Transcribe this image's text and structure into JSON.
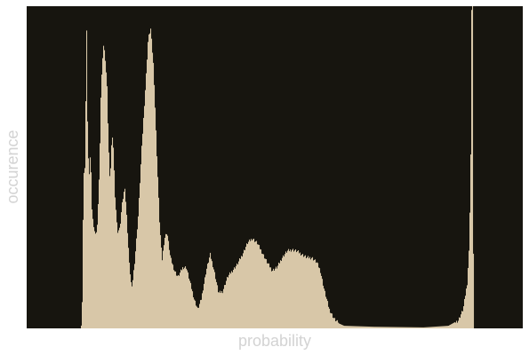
{
  "chart_data": {
    "type": "bar",
    "xlabel": "probability",
    "ylabel": "occurence",
    "title": "",
    "grid": false,
    "ticks_shown": false,
    "xlim": [
      0,
      1
    ],
    "ylim": [
      0,
      1
    ],
    "bar_color": "#d8c7a8",
    "background_color": "#17150f",
    "label_color": "#d3d3d3",
    "profile": [
      [
        0.0,
        0.0
      ],
      [
        0.11,
        0.0
      ],
      [
        0.112,
        0.08
      ],
      [
        0.115,
        0.5
      ],
      [
        0.117,
        0.45
      ],
      [
        0.121,
        0.93
      ],
      [
        0.123,
        0.6
      ],
      [
        0.126,
        0.47
      ],
      [
        0.129,
        0.55
      ],
      [
        0.132,
        0.35
      ],
      [
        0.137,
        0.3
      ],
      [
        0.142,
        0.3
      ],
      [
        0.147,
        0.5
      ],
      [
        0.15,
        0.75
      ],
      [
        0.155,
        0.88
      ],
      [
        0.158,
        0.85
      ],
      [
        0.162,
        0.76
      ],
      [
        0.165,
        0.58
      ],
      [
        0.168,
        0.45
      ],
      [
        0.172,
        0.6
      ],
      [
        0.175,
        0.56
      ],
      [
        0.178,
        0.42
      ],
      [
        0.183,
        0.3
      ],
      [
        0.188,
        0.31
      ],
      [
        0.192,
        0.38
      ],
      [
        0.198,
        0.44
      ],
      [
        0.202,
        0.34
      ],
      [
        0.207,
        0.2
      ],
      [
        0.212,
        0.12
      ],
      [
        0.218,
        0.21
      ],
      [
        0.225,
        0.35
      ],
      [
        0.232,
        0.56
      ],
      [
        0.24,
        0.76
      ],
      [
        0.245,
        0.9
      ],
      [
        0.25,
        0.93
      ],
      [
        0.256,
        0.81
      ],
      [
        0.262,
        0.56
      ],
      [
        0.268,
        0.33
      ],
      [
        0.273,
        0.21
      ],
      [
        0.278,
        0.28
      ],
      [
        0.283,
        0.3
      ],
      [
        0.29,
        0.22
      ],
      [
        0.298,
        0.18
      ],
      [
        0.305,
        0.16
      ],
      [
        0.315,
        0.19
      ],
      [
        0.322,
        0.19
      ],
      [
        0.33,
        0.14
      ],
      [
        0.338,
        0.09
      ],
      [
        0.345,
        0.06
      ],
      [
        0.352,
        0.09
      ],
      [
        0.362,
        0.18
      ],
      [
        0.37,
        0.23
      ],
      [
        0.378,
        0.18
      ],
      [
        0.387,
        0.11
      ],
      [
        0.395,
        0.115
      ],
      [
        0.405,
        0.16
      ],
      [
        0.415,
        0.18
      ],
      [
        0.425,
        0.2
      ],
      [
        0.435,
        0.23
      ],
      [
        0.445,
        0.265
      ],
      [
        0.455,
        0.28
      ],
      [
        0.465,
        0.265
      ],
      [
        0.475,
        0.235
      ],
      [
        0.485,
        0.205
      ],
      [
        0.495,
        0.18
      ],
      [
        0.505,
        0.19
      ],
      [
        0.515,
        0.22
      ],
      [
        0.525,
        0.24
      ],
      [
        0.535,
        0.245
      ],
      [
        0.545,
        0.24
      ],
      [
        0.555,
        0.23
      ],
      [
        0.565,
        0.22
      ],
      [
        0.575,
        0.22
      ],
      [
        0.585,
        0.205
      ],
      [
        0.592,
        0.18
      ],
      [
        0.6,
        0.12
      ],
      [
        0.61,
        0.06
      ],
      [
        0.62,
        0.03
      ],
      [
        0.63,
        0.015
      ],
      [
        0.64,
        0.008
      ],
      [
        0.7,
        0.005
      ],
      [
        0.8,
        0.003
      ],
      [
        0.85,
        0.008
      ],
      [
        0.87,
        0.025
      ],
      [
        0.88,
        0.06
      ],
      [
        0.888,
        0.14
      ],
      [
        0.892,
        0.25
      ],
      [
        0.895,
        0.5
      ],
      [
        0.897,
        1.0
      ],
      [
        0.899,
        1.0
      ],
      [
        0.901,
        0.0
      ],
      [
        1.0,
        0.0
      ]
    ]
  }
}
